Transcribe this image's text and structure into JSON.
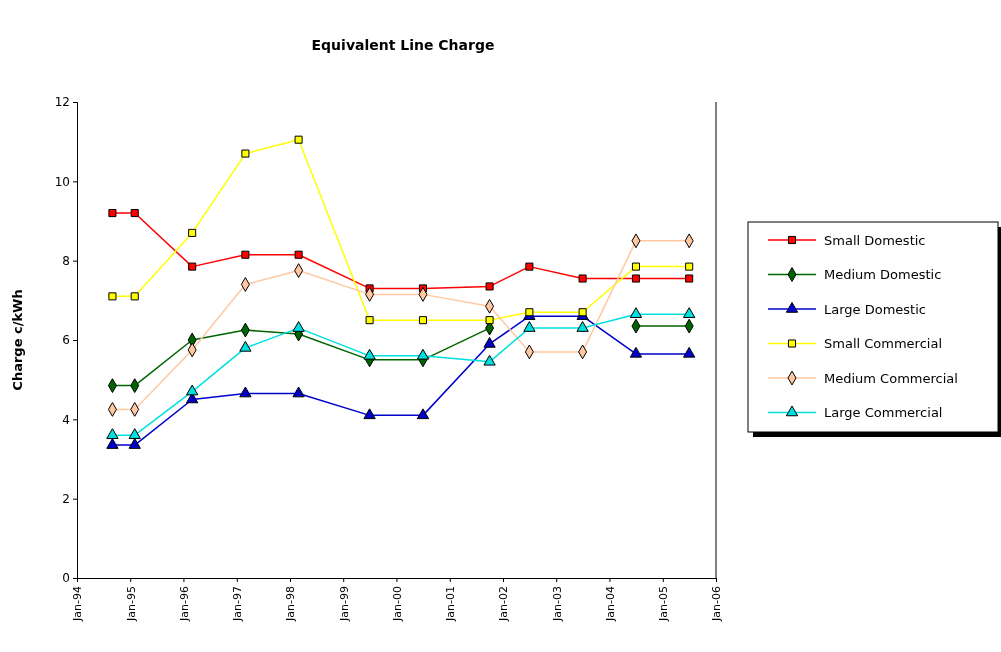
{
  "chart_data": {
    "type": "line",
    "title": "Equivalent Line Charge",
    "ylabel": "Charge c/kWh",
    "x": [
      "1994-09",
      "1995-02",
      "1996-03",
      "1997-03",
      "1998-03",
      "1999-07",
      "2000-07",
      "2001-10",
      "2002-07",
      "2003-07",
      "2004-07",
      "2005-07"
    ],
    "series": [
      {
        "name": "Small Domestic",
        "color": "#ff0000",
        "marker": "square",
        "values": [
          9.2,
          9.2,
          7.85,
          8.15,
          8.15,
          7.3,
          7.3,
          7.35,
          7.85,
          7.55,
          7.55,
          7.55
        ]
      },
      {
        "name": "Medium Domestic",
        "color": "#006400",
        "marker": "diamond",
        "values": [
          4.85,
          4.85,
          6.0,
          6.25,
          6.15,
          5.5,
          5.5,
          6.3,
          null,
          null,
          6.35,
          6.35
        ]
      },
      {
        "name": "Large Domestic",
        "color": "#0000cc",
        "marker": "triangle",
        "values": [
          3.35,
          3.35,
          4.5,
          4.65,
          4.65,
          4.1,
          4.1,
          5.9,
          6.6,
          6.6,
          5.65,
          5.65
        ]
      },
      {
        "name": "Small Commercial",
        "color": "#ffff00",
        "marker": "square",
        "values": [
          7.1,
          7.1,
          8.7,
          10.7,
          11.05,
          6.5,
          6.5,
          6.5,
          6.7,
          6.7,
          7.85,
          7.85
        ]
      },
      {
        "name": "Medium Commercial",
        "color": "#ffc8a0",
        "marker": "diamond",
        "values": [
          4.25,
          4.25,
          5.75,
          7.4,
          7.75,
          7.15,
          7.15,
          6.85,
          5.7,
          5.7,
          8.5,
          8.5
        ]
      },
      {
        "name": "Large Commercial",
        "color": "#00e0e0",
        "marker": "triangle",
        "values": [
          3.6,
          3.6,
          4.7,
          5.8,
          6.3,
          5.6,
          5.6,
          5.45,
          6.3,
          6.3,
          6.65,
          6.65
        ]
      }
    ],
    "xlim": [
      "1994-01",
      "2006-01"
    ],
    "xticks": [
      {
        "value": "1994-01",
        "label": "Jan-94"
      },
      {
        "value": "1995-01",
        "label": "Jan-95"
      },
      {
        "value": "1996-01",
        "label": "Jan-96"
      },
      {
        "value": "1997-01",
        "label": "Jan-97"
      },
      {
        "value": "1998-01",
        "label": "Jan-98"
      },
      {
        "value": "1999-01",
        "label": "Jan-99"
      },
      {
        "value": "2000-01",
        "label": "Jan-00"
      },
      {
        "value": "2001-01",
        "label": "Jan-01"
      },
      {
        "value": "2002-01",
        "label": "Jan-02"
      },
      {
        "value": "2003-01",
        "label": "Jan-03"
      },
      {
        "value": "2004-01",
        "label": "Jan-04"
      },
      {
        "value": "2005-01",
        "label": "Jan-05"
      },
      {
        "value": "2006-01",
        "label": "Jan-06"
      }
    ],
    "ylim": [
      0,
      12
    ],
    "yticks": [
      0,
      2,
      4,
      6,
      8,
      10,
      12
    ],
    "grid": false,
    "legend": "right",
    "line_style": "solid"
  }
}
